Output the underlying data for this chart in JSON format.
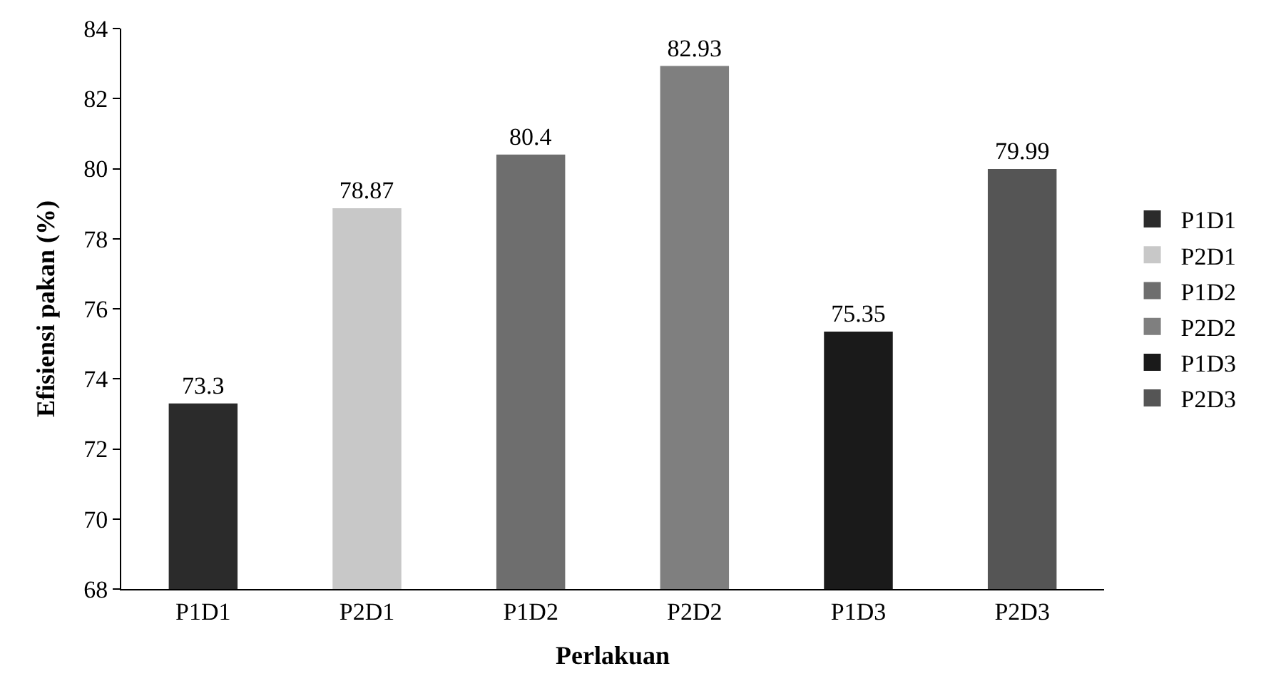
{
  "chart_data": {
    "type": "bar",
    "xlabel": "Perlakuan",
    "ylabel": "Efisiensi pakan (%)",
    "categories": [
      "P1D1",
      "P2D1",
      "P1D2",
      "P2D2",
      "P1D3",
      "P2D3"
    ],
    "series": [
      {
        "name": "P1D1",
        "color": "#2b2b2b",
        "values": [
          73.3,
          null,
          null,
          null,
          null,
          null
        ]
      },
      {
        "name": "P2D1",
        "color": "#c8c8c8",
        "values": [
          null,
          78.87,
          null,
          null,
          null,
          null
        ]
      },
      {
        "name": "P1D2",
        "color": "#6e6e6e",
        "values": [
          null,
          null,
          80.4,
          null,
          null,
          null
        ]
      },
      {
        "name": "P2D2",
        "color": "#7f7f7f",
        "values": [
          null,
          null,
          null,
          82.93,
          null,
          null
        ]
      },
      {
        "name": "P1D3",
        "color": "#1a1a1a",
        "values": [
          null,
          null,
          null,
          null,
          75.35,
          null
        ]
      },
      {
        "name": "P2D3",
        "color": "#555555",
        "values": [
          null,
          null,
          null,
          null,
          null,
          79.99
        ]
      }
    ],
    "ylim": [
      68,
      84
    ],
    "yticks": [
      68,
      70,
      72,
      74,
      76,
      78,
      80,
      82,
      84
    ],
    "data_labels": true,
    "legend": "right"
  }
}
